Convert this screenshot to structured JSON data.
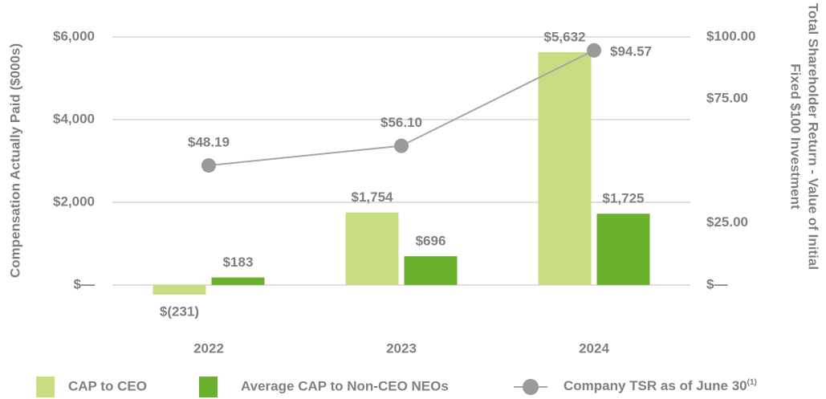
{
  "chart_data": {
    "type": "bar",
    "categories": [
      "2022",
      "2023",
      "2024"
    ],
    "series": [
      {
        "name": "CAP to CEO",
        "color": "#c8dc82",
        "values": [
          -231,
          1754,
          5632
        ],
        "value_labels": [
          "$(231)",
          "$1,754",
          "$5,632"
        ]
      },
      {
        "name": "Average CAP to Non-CEO NEOs",
        "color": "#6ab22e",
        "values": [
          183,
          696,
          1725
        ],
        "value_labels": [
          "$183",
          "$696",
          "$1,725"
        ]
      },
      {
        "name": "Company TSR as of June 30",
        "name_superscript": "(1)",
        "type": "line",
        "axis": "y2",
        "color": "#a6a6a6",
        "values": [
          48.19,
          56.1,
          94.57
        ],
        "value_labels": [
          "$48.19",
          "$56.10",
          "$94.57"
        ]
      }
    ],
    "ylabel": "Compensation Actually Paid ($000s)",
    "y2label": [
      "Total Shareholder Return - Value of Initial",
      "Fixed $100 Investment"
    ],
    "ylim": [
      -1000,
      6000
    ],
    "yticks": [
      {
        "value": 0,
        "label": "$—"
      },
      {
        "value": 2000,
        "label": "$2,000"
      },
      {
        "value": 4000,
        "label": "$4,000"
      },
      {
        "value": 6000,
        "label": "$6,000"
      }
    ],
    "y2lim": [
      0,
      100
    ],
    "y2ticks": [
      {
        "value": 0,
        "label": "$—"
      },
      {
        "value": 25,
        "label": "$25.00"
      },
      {
        "value": 75,
        "label": "$75.00"
      },
      {
        "value": 100,
        "label": "$100.00"
      }
    ],
    "grid": true,
    "legend": "bottom"
  }
}
